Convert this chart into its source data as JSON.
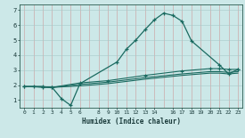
{
  "xlabel": "Humidex (Indice chaleur)",
  "bg_color": "#cce8e8",
  "grid_color_v": "#d4a0a0",
  "grid_color_h": "#b8cccc",
  "line_color": "#1a6a60",
  "xlim": [
    -0.5,
    23.5
  ],
  "ylim": [
    0.5,
    7.4
  ],
  "xticks": [
    0,
    1,
    2,
    3,
    4,
    5,
    6,
    8,
    9,
    10,
    11,
    12,
    13,
    14,
    16,
    17,
    18,
    19,
    20,
    21,
    22,
    23
  ],
  "yticks": [
    1,
    2,
    3,
    4,
    5,
    6,
    7
  ],
  "curve1_x": [
    0,
    1,
    2,
    3,
    4,
    5,
    6,
    10,
    11,
    12,
    13,
    14,
    15,
    16,
    17,
    18,
    21,
    22,
    23
  ],
  "curve1_y": [
    1.9,
    1.9,
    1.85,
    1.85,
    1.1,
    0.65,
    2.1,
    3.55,
    4.4,
    5.0,
    5.7,
    6.35,
    6.8,
    6.65,
    6.25,
    4.95,
    3.35,
    2.75,
    3.05
  ],
  "curve2_x": [
    0,
    2,
    3,
    6,
    9,
    13,
    17,
    20,
    21,
    22,
    23
  ],
  "curve2_y": [
    1.9,
    1.9,
    1.85,
    2.15,
    2.3,
    2.65,
    2.95,
    3.1,
    3.1,
    3.05,
    3.05
  ],
  "curve3_x": [
    0,
    2,
    3,
    6,
    9,
    13,
    17,
    20,
    21,
    22,
    23
  ],
  "curve3_y": [
    1.9,
    1.9,
    1.85,
    2.05,
    2.2,
    2.5,
    2.75,
    2.9,
    2.9,
    2.85,
    2.9
  ],
  "curve4_x": [
    0,
    2,
    3,
    6,
    9,
    13,
    17,
    20,
    21,
    22,
    23
  ],
  "curve4_y": [
    1.9,
    1.9,
    1.85,
    1.95,
    2.1,
    2.4,
    2.65,
    2.8,
    2.8,
    2.75,
    2.8
  ]
}
